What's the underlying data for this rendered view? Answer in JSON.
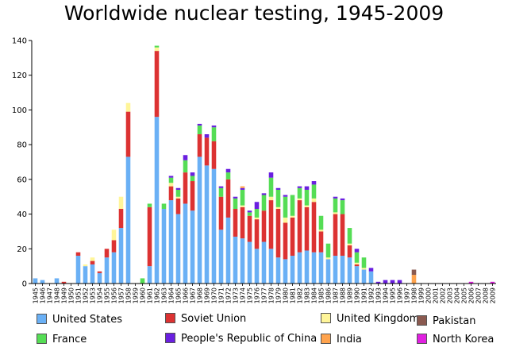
{
  "chart_data": {
    "type": "bar",
    "stacked": true,
    "title": "Worldwide nuclear testing, 1945-2009",
    "xlabel": "",
    "ylabel": "",
    "ylim": [
      0,
      140
    ],
    "yticks": [
      0,
      20,
      40,
      60,
      80,
      100,
      120,
      140
    ],
    "grid": false,
    "legend_position": "bottom",
    "categories": [
      "1945",
      "1946",
      "1947",
      "1948",
      "1949",
      "1950",
      "1951",
      "1952",
      "1953",
      "1954",
      "1955",
      "1956",
      "1957",
      "1958",
      "1959",
      "1960",
      "1961",
      "1962",
      "1963",
      "1964",
      "1965",
      "1966",
      "1967",
      "1968",
      "1969",
      "1970",
      "1971",
      "1972",
      "1973",
      "1974",
      "1975",
      "1976",
      "1977",
      "1978",
      "1979",
      "1980",
      "1981",
      "1982",
      "1983",
      "1984",
      "1985",
      "1986",
      "1987",
      "1988",
      "1989",
      "1990",
      "1991",
      "1992",
      "1993",
      "1994",
      "1995",
      "1996",
      "1997",
      "1998",
      "1999",
      "2000",
      "2001",
      "2002",
      "2003",
      "2004",
      "2005",
      "2006",
      "2007",
      "2008",
      "2009"
    ],
    "series": [
      {
        "name": "United States",
        "color": "#6ab0f5",
        "values": [
          3,
          2,
          0,
          3,
          0,
          0,
          16,
          10,
          11,
          6,
          15,
          18,
          32,
          73,
          0,
          0,
          10,
          96,
          43,
          48,
          40,
          46,
          42,
          73,
          68,
          66,
          31,
          38,
          27,
          26,
          24,
          20,
          24,
          20,
          15,
          14,
          16,
          18,
          19,
          18,
          18,
          14,
          16,
          16,
          15,
          10,
          8,
          7,
          0,
          0,
          0,
          0,
          0,
          0,
          0,
          0,
          0,
          0,
          0,
          0,
          0,
          0,
          0,
          0,
          0
        ]
      },
      {
        "name": "Soviet Union",
        "color": "#dc3232",
        "values": [
          0,
          0,
          0,
          0,
          1,
          0,
          2,
          0,
          2,
          1,
          5,
          7,
          11,
          26,
          0,
          0,
          34,
          38,
          0,
          8,
          9,
          18,
          17,
          13,
          16,
          16,
          19,
          22,
          16,
          18,
          15,
          17,
          18,
          28,
          28,
          21,
          22,
          30,
          25,
          29,
          12,
          0,
          24,
          24,
          7,
          1,
          0,
          0,
          0,
          0,
          0,
          0,
          0,
          0,
          0,
          0,
          0,
          0,
          0,
          0,
          0,
          0,
          0,
          0,
          0
        ]
      },
      {
        "name": "United Kingdom",
        "color": "#fff599",
        "values": [
          0,
          0,
          0,
          0,
          0,
          0,
          0,
          1,
          2,
          0,
          0,
          6,
          7,
          5,
          0,
          0,
          0,
          2,
          0,
          2,
          1,
          0,
          0,
          0,
          0,
          0,
          0,
          0,
          0,
          1,
          0,
          1,
          0,
          2,
          1,
          3,
          1,
          1,
          1,
          2,
          1,
          1,
          1,
          0,
          1,
          1,
          1,
          0,
          0,
          0,
          0,
          0,
          0,
          0,
          0,
          0,
          0,
          0,
          0,
          0,
          0,
          0,
          0,
          0,
          0
        ]
      },
      {
        "name": "France",
        "color": "#55dd55",
        "values": [
          0,
          0,
          0,
          0,
          0,
          0,
          0,
          0,
          0,
          0,
          0,
          0,
          0,
          0,
          0,
          3,
          2,
          1,
          3,
          3,
          4,
          7,
          3,
          5,
          0,
          8,
          5,
          4,
          6,
          9,
          2,
          5,
          9,
          11,
          10,
          12,
          12,
          6,
          9,
          8,
          8,
          8,
          8,
          8,
          9,
          6,
          6,
          0,
          0,
          0,
          0,
          0,
          0,
          0,
          0,
          0,
          0,
          0,
          0,
          0,
          0,
          0,
          0,
          0,
          0
        ]
      },
      {
        "name": "People's Republic of China",
        "color": "#6a1fe0",
        "values": [
          0,
          0,
          0,
          0,
          0,
          0,
          0,
          0,
          0,
          0,
          0,
          0,
          0,
          0,
          0,
          0,
          0,
          0,
          0,
          1,
          1,
          3,
          2,
          1,
          2,
          1,
          1,
          2,
          1,
          1,
          1,
          4,
          1,
          3,
          1,
          1,
          0,
          1,
          2,
          2,
          0,
          0,
          1,
          1,
          0,
          2,
          0,
          2,
          1,
          2,
          2,
          2,
          0,
          0,
          0,
          0,
          0,
          0,
          0,
          0,
          0,
          0,
          0,
          0,
          0
        ]
      },
      {
        "name": "India",
        "color": "#ffa34d",
        "values": [
          0,
          0,
          0,
          0,
          0,
          0,
          0,
          0,
          0,
          0,
          0,
          0,
          0,
          0,
          0,
          0,
          0,
          0,
          0,
          0,
          0,
          0,
          0,
          0,
          0,
          0,
          0,
          0,
          0,
          1,
          0,
          0,
          0,
          0,
          0,
          0,
          0,
          0,
          0,
          0,
          0,
          0,
          0,
          0,
          0,
          0,
          0,
          0,
          0,
          0,
          0,
          0,
          0,
          5,
          0,
          0,
          0,
          0,
          0,
          0,
          0,
          0,
          0,
          0,
          0
        ]
      },
      {
        "name": "Pakistan",
        "color": "#8a5a50",
        "values": [
          0,
          0,
          0,
          0,
          0,
          0,
          0,
          0,
          0,
          0,
          0,
          0,
          0,
          0,
          0,
          0,
          0,
          0,
          0,
          0,
          0,
          0,
          0,
          0,
          0,
          0,
          0,
          0,
          0,
          0,
          0,
          0,
          0,
          0,
          0,
          0,
          0,
          0,
          0,
          0,
          0,
          0,
          0,
          0,
          0,
          0,
          0,
          0,
          0,
          0,
          0,
          0,
          0,
          3,
          0,
          0,
          0,
          0,
          0,
          0,
          0,
          0,
          0,
          0,
          0
        ]
      },
      {
        "name": "North Korea",
        "color": "#e020e0",
        "values": [
          0,
          0,
          0,
          0,
          0,
          0,
          0,
          0,
          0,
          0,
          0,
          0,
          0,
          0,
          0,
          0,
          0,
          0,
          0,
          0,
          0,
          0,
          0,
          0,
          0,
          0,
          0,
          0,
          0,
          0,
          0,
          0,
          0,
          0,
          0,
          0,
          0,
          0,
          0,
          0,
          0,
          0,
          0,
          0,
          0,
          0,
          0,
          0,
          0,
          0,
          0,
          0,
          0,
          0,
          0,
          0,
          0,
          0,
          0,
          0,
          0,
          1,
          0,
          0,
          1
        ]
      }
    ]
  },
  "legend": [
    {
      "label": "United States",
      "color": "#6ab0f5"
    },
    {
      "label": "Soviet Union",
      "color": "#dc3232"
    },
    {
      "label": "United Kingdom",
      "color": "#fff599"
    },
    {
      "label": "Pakistan",
      "color": "#8a5a50"
    },
    {
      "label": "France",
      "color": "#55dd55"
    },
    {
      "label": "People's Republic of China",
      "color": "#6a1fe0"
    },
    {
      "label": "India",
      "color": "#ffa34d"
    },
    {
      "label": "North Korea",
      "color": "#e020e0"
    }
  ]
}
